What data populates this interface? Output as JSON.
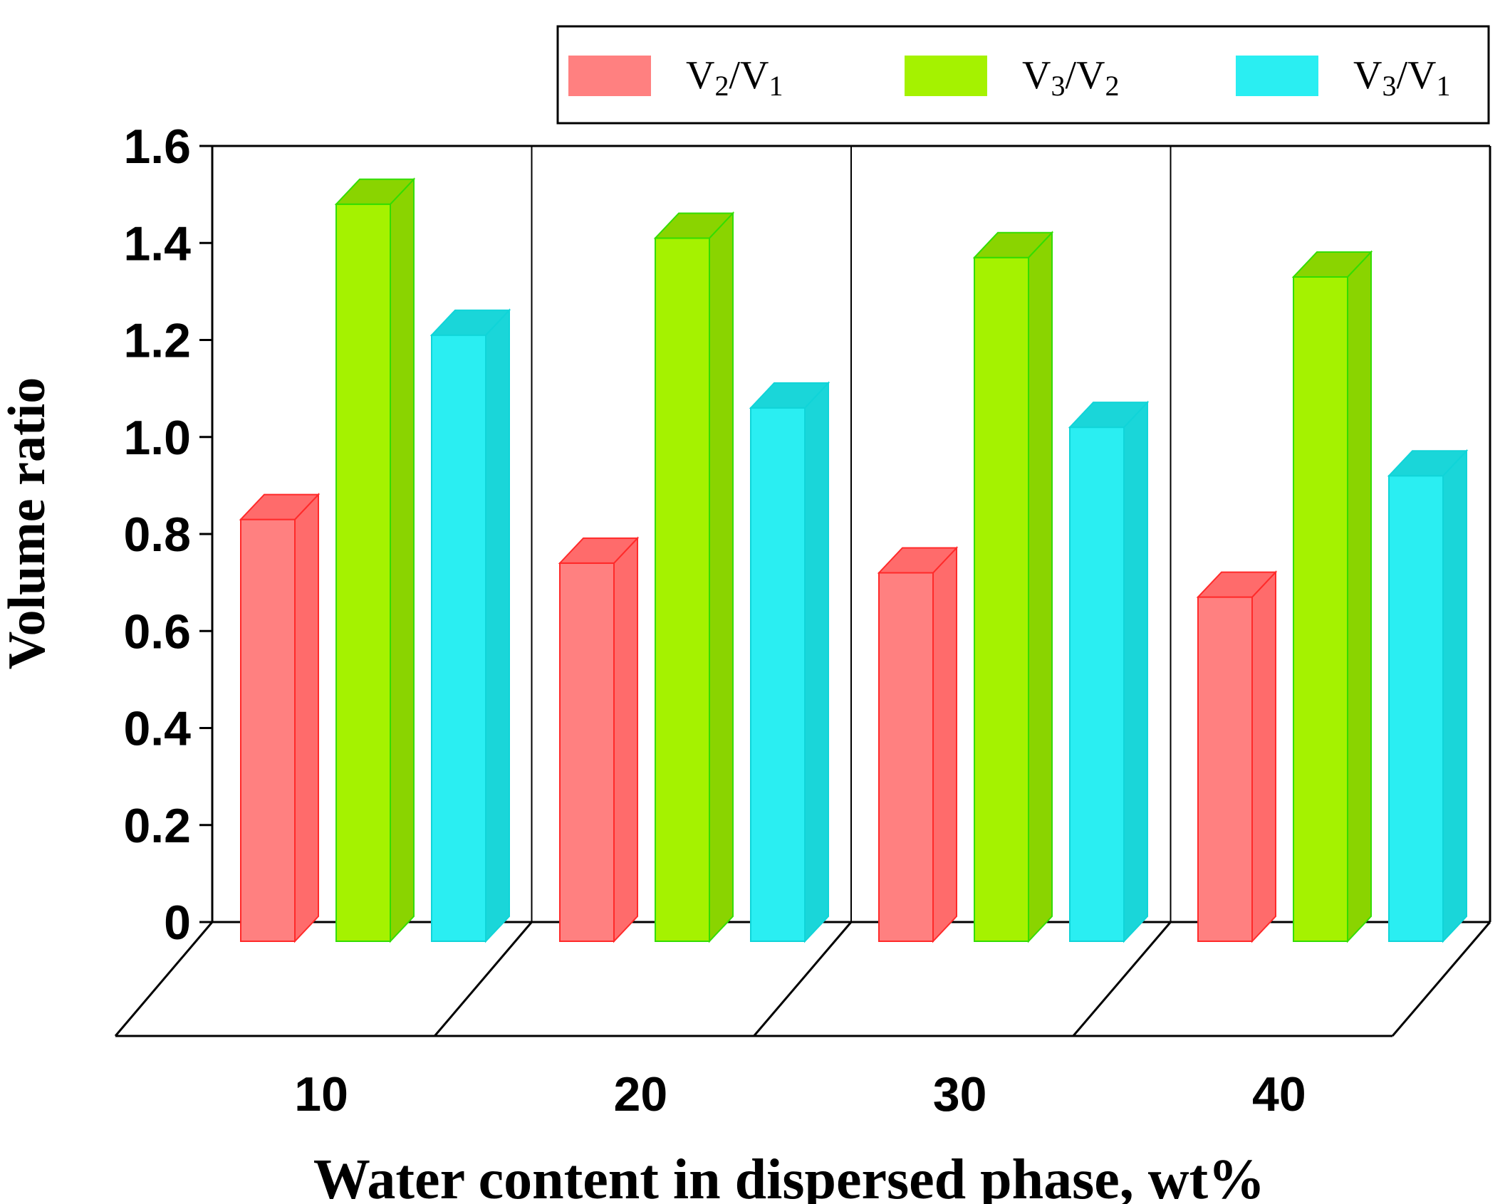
{
  "chart_data": {
    "type": "bar",
    "title": "",
    "xlabel": "Water content in dispersed phase, wt%",
    "ylabel": "Volume ratio",
    "categories": [
      "10",
      "20",
      "30",
      "40"
    ],
    "ylim": [
      0,
      1.6
    ],
    "yticks": [
      "0",
      "0.2",
      "0.4",
      "0.6",
      "0.8",
      "1.0",
      "1.2",
      "1.4",
      "1.6"
    ],
    "ytick_values": [
      0,
      0.2,
      0.4,
      0.6,
      0.8,
      1.0,
      1.2,
      1.4,
      1.6
    ],
    "legend_position": "top-right",
    "series": [
      {
        "name": "V2/V1",
        "label_main": [
          "V",
          "/V"
        ],
        "label_sub": [
          "2",
          "1"
        ],
        "values": [
          0.83,
          0.74,
          0.72,
          0.67
        ],
        "color": "#ff8080",
        "side_color": "#ff6b6b",
        "top_color": "#ff6b6b",
        "edge_color": "#ff2a2a"
      },
      {
        "name": "V3/V2",
        "label_main": [
          "V",
          "/V"
        ],
        "label_sub": [
          "3",
          "2"
        ],
        "values": [
          1.48,
          1.41,
          1.37,
          1.33
        ],
        "color": "#a5f200",
        "side_color": "#8ad400",
        "top_color": "#8ad400",
        "edge_color": "#33dd00"
      },
      {
        "name": "V3/V1",
        "label_main": [
          "V",
          "/V"
        ],
        "label_sub": [
          "3",
          "1"
        ],
        "values": [
          1.21,
          1.06,
          1.02,
          0.92
        ],
        "color": "#2aeef2",
        "side_color": "#1ad6d9",
        "top_color": "#1ad6d9",
        "edge_color": "#10d4d8"
      }
    ]
  }
}
